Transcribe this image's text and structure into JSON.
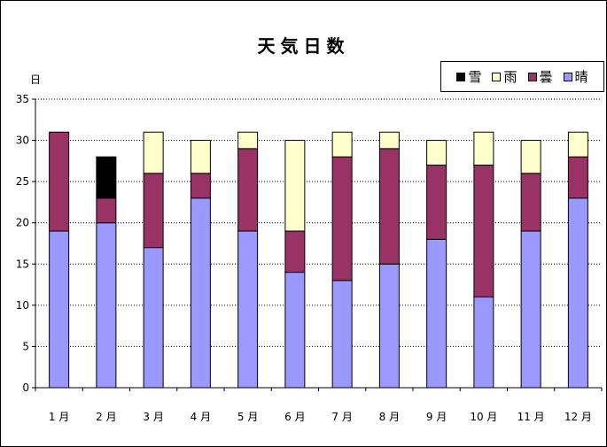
{
  "chart_data": {
    "type": "bar",
    "stacked": true,
    "title": "天気日数",
    "ylabel": "日",
    "xlabel": "",
    "ylim": [
      0,
      35
    ],
    "yticks": [
      0,
      5,
      10,
      15,
      20,
      25,
      30,
      35
    ],
    "grid": true,
    "legend_position": "top-right",
    "categories": [
      "1 月",
      "2 月",
      "3 月",
      "4 月",
      "5 月",
      "6 月",
      "7 月",
      "8 月",
      "9 月",
      "10 月",
      "11 月",
      "12 月"
    ],
    "series": [
      {
        "name": "晴",
        "color": "#9999ff",
        "values": [
          19,
          20,
          17,
          23,
          19,
          14,
          13,
          15,
          18,
          11,
          19,
          23
        ]
      },
      {
        "name": "曇",
        "color": "#993366",
        "values": [
          12,
          3,
          9,
          3,
          10,
          5,
          15,
          14,
          9,
          16,
          7,
          5
        ]
      },
      {
        "name": "雨",
        "color": "#ffffcc",
        "values": [
          0,
          0,
          5,
          4,
          2,
          11,
          3,
          2,
          3,
          4,
          4,
          3
        ]
      },
      {
        "name": "雪",
        "color": "#000000",
        "values": [
          0,
          5,
          0,
          0,
          0,
          0,
          0,
          0,
          0,
          0,
          0,
          0
        ]
      }
    ],
    "legend_order": [
      "雪",
      "雨",
      "曇",
      "晴"
    ]
  }
}
